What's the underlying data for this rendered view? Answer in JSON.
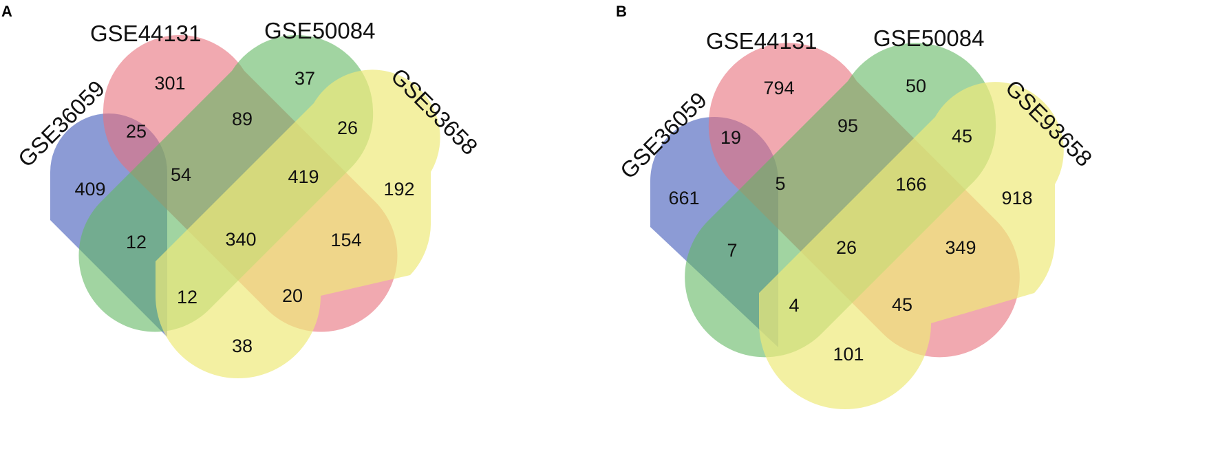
{
  "panels": [
    {
      "letter": "A",
      "sets": [
        "GSE36059",
        "GSE44131",
        "GSE50084",
        "GSE93658"
      ],
      "regions": {
        "only_36059": "409",
        "only_44131": "301",
        "only_50084": "37",
        "only_93658": "192",
        "r_36059_44131": "25",
        "r_44131_50084": "89",
        "r_50084_93658": "26",
        "r_36059_44131_50084": "54",
        "r_44131_50084_93658": "419",
        "r_36059_50084": "12",
        "r_all": "340",
        "r_44131_93658": "154",
        "r_36059_50084_93658": "12",
        "r_36059_44131_93658": "20",
        "r_36059_93658": "38"
      }
    },
    {
      "letter": "B",
      "sets": [
        "GSE36059",
        "GSE44131",
        "GSE50084",
        "GSE93658"
      ],
      "regions": {
        "only_36059": "661",
        "only_44131": "794",
        "only_50084": "50",
        "only_93658": "918",
        "r_36059_44131": "19",
        "r_44131_50084": "95",
        "r_50084_93658": "45",
        "r_36059_44131_50084": "5",
        "r_44131_50084_93658": "166",
        "r_36059_50084": "7",
        "r_all": "26",
        "r_44131_93658": "349",
        "r_36059_50084_93658": "4",
        "r_36059_44131_93658": "45",
        "r_36059_93658": "101"
      }
    }
  ],
  "colors": {
    "GSE36059": "#6b7fc9",
    "GSE44131": "#e8707c",
    "GSE50084": "#62b862",
    "GSE93658": "#eeea7a"
  }
}
